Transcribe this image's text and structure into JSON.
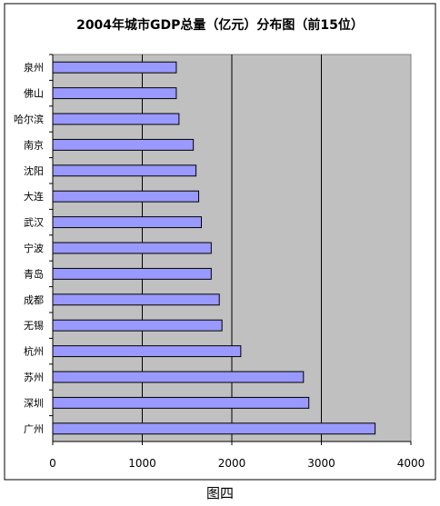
{
  "caption": "图四",
  "chart_data": {
    "type": "bar",
    "orientation": "horizontal",
    "title": "2004年城市GDP总量（亿元）分布图（前15位）",
    "xlabel": "",
    "ylabel": "",
    "xlim": [
      0,
      4000
    ],
    "xticks": [
      "0",
      "1000",
      "2000",
      "3000",
      "4000"
    ],
    "grid": "vertical",
    "legend": "none",
    "categories": [
      "泉州",
      "佛山",
      "哈尔滨",
      "南京",
      "沈阳",
      "大连",
      "武汉",
      "宁波",
      "青岛",
      "成都",
      "无锡",
      "杭州",
      "苏州",
      "深圳",
      "广州"
    ],
    "values": [
      1380,
      1380,
      1410,
      1570,
      1600,
      1630,
      1660,
      1770,
      1770,
      1860,
      1890,
      2100,
      2800,
      2860,
      3600
    ],
    "colors": {
      "bar_fill": "#9999ff",
      "bar_stroke": "#000000",
      "plot_background": "#c0c0c0",
      "page_background": "#ffffff"
    }
  }
}
